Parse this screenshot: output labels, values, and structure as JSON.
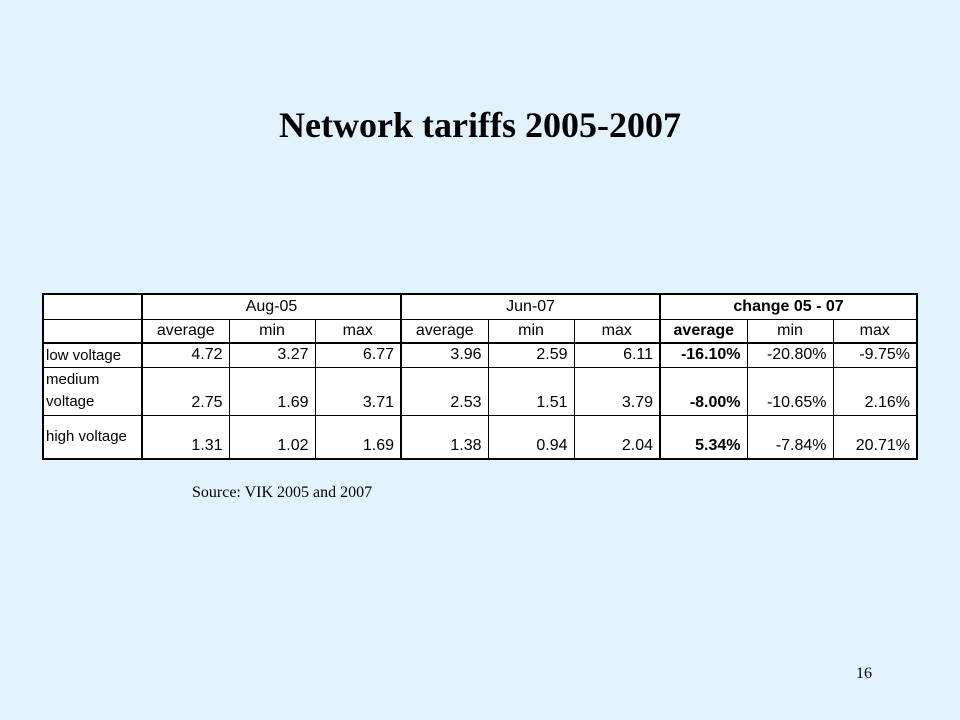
{
  "title": "Network tariffs 2005-2007",
  "table": {
    "groups": [
      "Aug-05",
      "Jun-07",
      "change 05 - 07"
    ],
    "subheaders": [
      "average",
      "min",
      "max",
      "average",
      "min",
      "max",
      "average",
      "min",
      "max"
    ],
    "rows": [
      {
        "label": "low voltage",
        "label_lines": [
          "low voltage"
        ],
        "values": [
          "4.72",
          "3.27",
          "6.77",
          "3.96",
          "2.59",
          "6.11",
          "-16.10%",
          "-20.80%",
          "-9.75%"
        ]
      },
      {
        "label": "medium voltage",
        "label_lines": [
          "medium",
          "voltage"
        ],
        "values": [
          "2.75",
          "1.69",
          "3.71",
          "2.53",
          "1.51",
          "3.79",
          "-8.00%",
          "-10.65%",
          "2.16%"
        ]
      },
      {
        "label": "high voltage",
        "label_lines": [
          "high voltage"
        ],
        "values": [
          "1.31",
          "1.02",
          "1.69",
          "1.38",
          "0.94",
          "2.04",
          "5.34%",
          "-7.84%",
          "20.71%"
        ]
      }
    ]
  },
  "source": "Source: VIK 2005 and 2007",
  "page_number": "16"
}
